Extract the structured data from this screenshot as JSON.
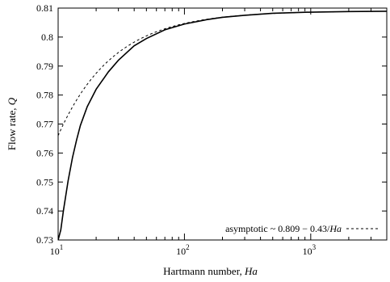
{
  "chart_data": {
    "type": "line",
    "xscale": "log",
    "xlim": [
      10,
      4000
    ],
    "ylim": [
      0.73,
      0.81
    ],
    "xlabel": "Hartmann number, Ha",
    "ylabel": "Flow rate, Q",
    "xlabel_parts": {
      "prefix": "Hartmann number, ",
      "italic": "Ha"
    },
    "ylabel_parts": {
      "prefix": "Flow rate, ",
      "italic": "Q"
    },
    "x_ticks": [
      {
        "value": 10,
        "base": "10",
        "exp": "1"
      },
      {
        "value": 100,
        "base": "10",
        "exp": "2"
      },
      {
        "value": 1000,
        "base": "10",
        "exp": "3"
      }
    ],
    "y_ticks": [
      {
        "value": 0.73,
        "label": "0.73"
      },
      {
        "value": 0.74,
        "label": "0.74"
      },
      {
        "value": 0.75,
        "label": "0.75"
      },
      {
        "value": 0.76,
        "label": "0.76"
      },
      {
        "value": 0.77,
        "label": "0.77"
      },
      {
        "value": 0.78,
        "label": "0.78"
      },
      {
        "value": 0.79,
        "label": "0.79"
      },
      {
        "value": 0.8,
        "label": "0.8"
      },
      {
        "value": 0.81,
        "label": "0.81"
      }
    ],
    "legend_position": "bottom-right",
    "grid": false,
    "series": [
      {
        "style": "solid",
        "x": [
          10,
          10.5,
          11,
          12,
          13,
          14,
          15,
          17,
          20,
          25,
          30,
          40,
          50,
          70,
          100,
          150,
          200,
          300,
          500,
          1000,
          2000,
          4000
        ],
        "y": [
          0.73,
          0.7335,
          0.74,
          0.7505,
          0.7585,
          0.7645,
          0.7695,
          0.776,
          0.782,
          0.788,
          0.792,
          0.797,
          0.7995,
          0.8025,
          0.8045,
          0.806,
          0.8068,
          0.8075,
          0.8082,
          0.8086,
          0.8088,
          0.8089
        ]
      },
      {
        "name": "asymptotic ~ 0.809 − 0.43/Ha",
        "name_parts": {
          "prefix": "asymptotic ~ 0.809 − 0.43/",
          "italic": "Ha"
        },
        "style": "dashed",
        "formula": {
          "a": 0.809,
          "b": 0.43
        },
        "x": [
          10,
          11,
          12,
          13,
          14,
          15,
          17,
          20,
          25,
          30,
          40,
          50,
          70,
          100,
          150,
          200,
          300,
          500,
          1000,
          2000,
          4000
        ],
        "y": [
          0.766,
          0.7699,
          0.7732,
          0.7759,
          0.7783,
          0.7803,
          0.7837,
          0.7875,
          0.7918,
          0.7947,
          0.7983,
          0.8004,
          0.8029,
          0.8047,
          0.8061,
          0.8069,
          0.8076,
          0.8081,
          0.8086,
          0.8088,
          0.8089
        ]
      }
    ]
  }
}
